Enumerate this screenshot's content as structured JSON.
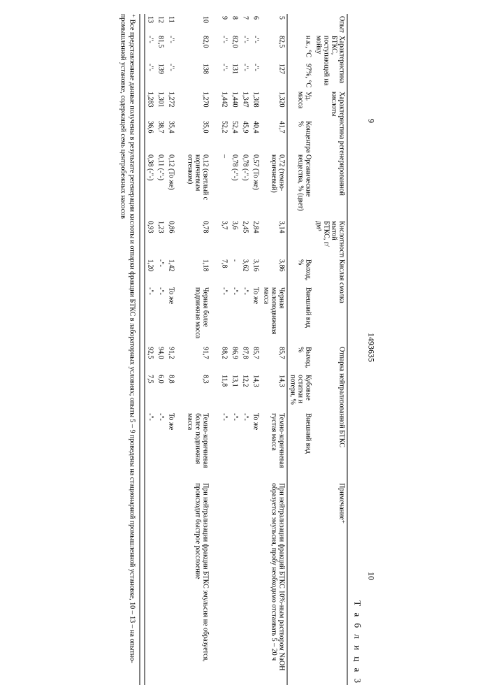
{
  "page_left": "9",
  "doc_number": "1493635",
  "page_right": "10",
  "table_label": "Т а б л и ц а 3",
  "headers": {
    "opyt": "Опыт",
    "char_btks": "Характеристика БТКС, поступающей на мойку",
    "nk": "н.к., °С",
    "pct97": "97%, °С",
    "char_acid": "Характеристика регенерированной кислоты",
    "ud_massa": "Уд. масса",
    "konc": "Концентрация, %",
    "org": "Органические вещества, % (цвет)",
    "kislot": "Кислотность мытой БТКС, г/дм³",
    "kislaya": "Кислая смолка",
    "vyhod": "Выход, %",
    "vid": "Внешний вид",
    "otparka": "Отпарка нейтрализованной БТКС",
    "kubo": "Кубовые остатки и потери, %",
    "prim": "Примечание⁺"
  },
  "rows": [
    {
      "n": "5",
      "nk": "82,5",
      "p97": "127",
      "ud": "1,320",
      "konc": "41,7",
      "org": "0,72 (темно-коричневый)",
      "kis": "3,14",
      "vy1": "3,86",
      "vid1": "Черная малоподвижная масса",
      "vy2": "85,7",
      "kub": "14,3",
      "vid2": "Темно-коричневая густая масса",
      "prim": "При нейтрализации фракций БТКС 10%-ным раствором NaOH образуется эмульсия, пробу необходимо отстаивать 5 – 20 ч"
    },
    {
      "n": "6",
      "nk": "-\"-",
      "p97": "-\"-",
      "ud": "1,308",
      "konc": "40,4",
      "org": "0,57 (То же)",
      "kis": "2,84",
      "vy1": "3,16",
      "vid1": "То же",
      "vy2": "85,7",
      "kub": "14,3",
      "vid2": "То же",
      "prim": ""
    },
    {
      "n": "7",
      "nk": "-\"-",
      "p97": "-\"-",
      "ud": "1,347",
      "konc": "45,9",
      "org": "0,78 (-\"-)",
      "kis": "2,45",
      "vy1": "3,62",
      "vid1": "-\"-",
      "vy2": "87,8",
      "kub": "12,2",
      "vid2": "-\"-",
      "prim": ""
    },
    {
      "n": "8",
      "nk": "82,0",
      "p97": "131",
      "ud": "1,440",
      "konc": "52,4",
      "org": "0,78 (-\"-)",
      "kis": "3,6",
      "vy1": "-",
      "vid1": "-\"-",
      "vy2": "86,9",
      "kub": "13,1",
      "vid2": "-\"-",
      "prim": ""
    },
    {
      "n": "9",
      "nk": "-\"-",
      "p97": "-\"-",
      "ud": "1,442",
      "konc": "52,2",
      "org": "–",
      "kis": "3,7",
      "vy1": "7,8",
      "vid1": "-\"-",
      "vy2": "88,2",
      "kub": "11,8",
      "vid2": "-\"-",
      "prim": ""
    },
    {
      "n": "10",
      "nk": "82,0",
      "p97": "138",
      "ud": "1,270",
      "konc": "35,0",
      "org": "0,12 (светлый с коричневым оттенком)",
      "kis": "0,78",
      "vy1": "1,18",
      "vid1": "Черная более подвижная масса",
      "vy2": "91,7",
      "kub": "8,3",
      "vid2": "Темно-коричневая более подвижная масса",
      "prim": "При нейтрализации фракции БТКС эмульсия не образуется, происходит быстрое расслоение"
    },
    {
      "n": "11",
      "nk": "-\"-",
      "p97": "-\"-",
      "ud": "1,272",
      "konc": "35,4",
      "org": "0,12 (То же)",
      "kis": "0,86",
      "vy1": "1,42",
      "vid1": "То же",
      "vy2": "91,2",
      "kub": "8,8",
      "vid2": "То же",
      "prim": ""
    },
    {
      "n": "12",
      "nk": "81,5",
      "p97": "139",
      "ud": "1,301",
      "konc": "38,7",
      "org": "0,11 (-\"-)",
      "kis": "1,23",
      "vy1": "-\"-",
      "vid1": "-\"-",
      "vy2": "94,0",
      "kub": "6,0",
      "vid2": "-\"-",
      "prim": ""
    },
    {
      "n": "13",
      "nk": "-\"-",
      "p97": "-\"-",
      "ud": "1,283",
      "konc": "36,6",
      "org": "0,38 (-\"-)",
      "kis": "0,93",
      "vy1": "1,20",
      "vid1": "-\"-",
      "vy2": "92,5",
      "kub": "7,5",
      "vid2": "-\"-",
      "prim": ""
    }
  ],
  "footnote": "⁺ Все представленные данные получены в результате регенерации кислоты и отпарки фракции БТКС в лабораторных условиях; опыты 5 – 9 проведены на стационарной промышленной установке, 10 – 13 – на опытно-промышленной установке, содержащей семь центробежных насосов"
}
